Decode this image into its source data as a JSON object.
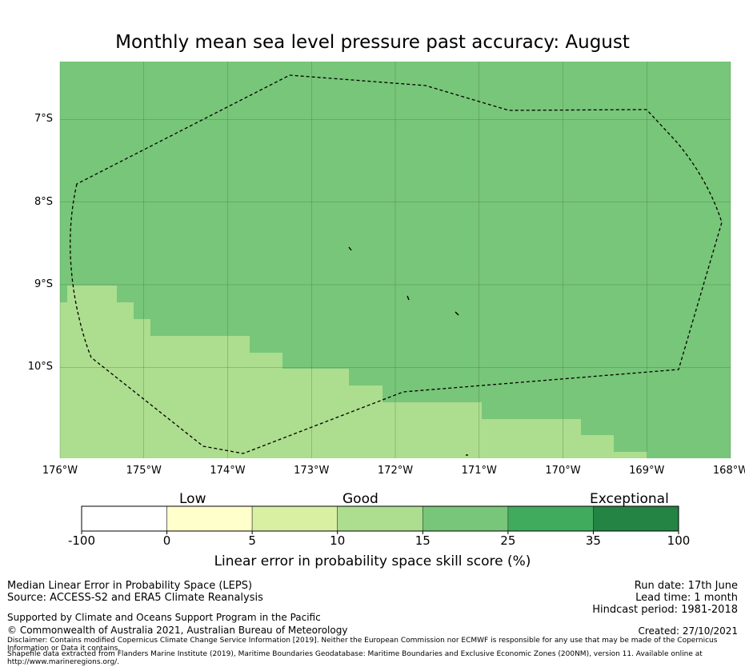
{
  "title": "Monthly mean sea level pressure past accuracy: August",
  "map": {
    "lon_range": [
      -176,
      -168
    ],
    "lat_range": [
      -11.1,
      -6.3
    ],
    "lat_ticks": [
      {
        "value": -7,
        "label": "7°S"
      },
      {
        "value": -8,
        "label": "8°S"
      },
      {
        "value": -9,
        "label": "9°S"
      },
      {
        "value": -10,
        "label": "10°S"
      }
    ],
    "lon_ticks": [
      {
        "value": -176,
        "label": "176°W"
      },
      {
        "value": -175,
        "label": "175°W"
      },
      {
        "value": -174,
        "label": "174°W"
      },
      {
        "value": -173,
        "label": "173°W"
      },
      {
        "value": -172,
        "label": "172°W"
      },
      {
        "value": -171,
        "label": "171°W"
      },
      {
        "value": -170,
        "label": "170°W"
      },
      {
        "value": -169,
        "label": "169°W"
      },
      {
        "value": -168,
        "label": "168°W"
      }
    ],
    "background_class": "15 to 25",
    "background_color": "#78c679",
    "lower_region_class": "10 to 15",
    "lower_region_color": "#addd8e",
    "boundary_style": "dashed black line (Exclusive Economic Zone)",
    "grid": true
  },
  "colorbar": {
    "categories": [
      {
        "label": "Low"
      },
      {
        "label": "Good"
      },
      {
        "label": "Exceptional"
      }
    ],
    "segments": [
      {
        "from": "-100",
        "to": "0",
        "color": "#ffffff"
      },
      {
        "from": "0",
        "to": "5",
        "color": "#ffffcc"
      },
      {
        "from": "5",
        "to": "10",
        "color": "#d9f0a3"
      },
      {
        "from": "10",
        "to": "15",
        "color": "#addd8e"
      },
      {
        "from": "15",
        "to": "25",
        "color": "#78c679"
      },
      {
        "from": "25",
        "to": "35",
        "color": "#41ab5d"
      },
      {
        "from": "35",
        "to": "100",
        "color": "#238443"
      }
    ],
    "ticks": [
      "-100",
      "0",
      "5",
      "10",
      "15",
      "25",
      "35",
      "100"
    ],
    "label": "Linear error in probability space skill score (%)"
  },
  "footer": {
    "left_line1": "Median Linear Error in Probability Space (LEPS)",
    "left_line2": "Source: ACCESS-S2 and ERA5 Climate Reanalysis",
    "supported_by": "Supported by Climate and Oceans Support Program in the Pacific",
    "copyright": "© Commonwealth of Australia 2021, Australian Bureau of Meteorology",
    "disclaimer": "Disclaimer: Contains modified Copernicus Climate Change Service Information [2019]. Neither the European Commission nor ECMWF is responsible for any use that may be made of the Copernicus Information or Data it contains.",
    "shapefile": "Shapefile data extracted from Flanders Marine Institute (2019), Maritime Boundaries Geodatabase: Maritime Boundaries and Exclusive Economic Zones (200NM), version 11. Available online at http://www.marineregions.org/.",
    "run_date": "Run date: 17th June",
    "lead_time": "Lead time: 1 month",
    "hindcast": "Hindcast period: 1981-2018",
    "created": "Created: 27/10/2021"
  }
}
